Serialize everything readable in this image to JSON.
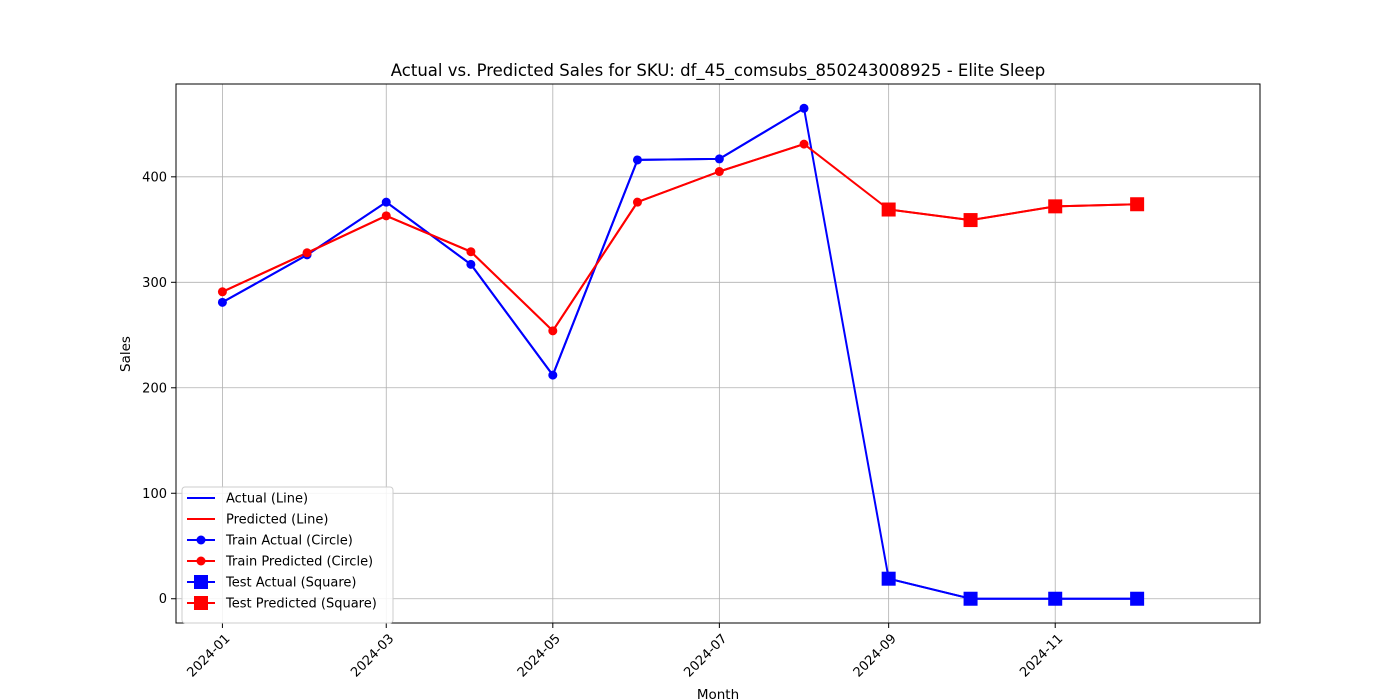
{
  "chart_data": {
    "type": "line",
    "title": "Actual vs. Predicted Sales for SKU: df_45_comsubs_850243008925 - Elite Sleep",
    "xlabel": "Month",
    "ylabel": "Sales",
    "x_ticks": [
      "2024-01",
      "2024-03",
      "2024-05",
      "2024-07",
      "2024-09",
      "2024-11"
    ],
    "y_ticks": [
      0,
      100,
      200,
      300,
      400
    ],
    "xlim": [
      "2023-12-15",
      "2025-01-15"
    ],
    "ylim": [
      -23,
      488
    ],
    "grid": true,
    "legend_position": "lower-left",
    "colors": {
      "actual": "#0000ff",
      "predicted": "#ff0000"
    },
    "series": [
      {
        "name": "Actual (Line)",
        "kind": "line",
        "color": "#0000ff",
        "x": [
          "2024-01",
          "2024-02",
          "2024-03",
          "2024-04",
          "2024-05",
          "2024-06",
          "2024-07",
          "2024-08",
          "2024-09",
          "2024-10",
          "2024-11",
          "2024-12"
        ],
        "values": [
          281,
          326,
          376,
          317,
          212,
          416,
          417,
          465,
          19,
          0,
          0,
          0
        ]
      },
      {
        "name": "Predicted (Line)",
        "kind": "line",
        "color": "#ff0000",
        "x": [
          "2024-01",
          "2024-02",
          "2024-03",
          "2024-04",
          "2024-05",
          "2024-06",
          "2024-07",
          "2024-08",
          "2024-09",
          "2024-10",
          "2024-11",
          "2024-12"
        ],
        "values": [
          291,
          328,
          363,
          329,
          254,
          376,
          405,
          431,
          369,
          359,
          372,
          374
        ]
      },
      {
        "name": "Train Actual (Circle)",
        "kind": "circle",
        "color": "#0000ff",
        "x": [
          "2024-01",
          "2024-02",
          "2024-03",
          "2024-04",
          "2024-05",
          "2024-06",
          "2024-07",
          "2024-08"
        ],
        "values": [
          281,
          326,
          376,
          317,
          212,
          416,
          417,
          465
        ]
      },
      {
        "name": "Train Predicted (Circle)",
        "kind": "circle",
        "color": "#ff0000",
        "x": [
          "2024-01",
          "2024-02",
          "2024-03",
          "2024-04",
          "2024-05",
          "2024-06",
          "2024-07",
          "2024-08"
        ],
        "values": [
          291,
          328,
          363,
          329,
          254,
          376,
          405,
          431
        ]
      },
      {
        "name": "Test Actual (Square)",
        "kind": "square",
        "color": "#0000ff",
        "x": [
          "2024-09",
          "2024-10",
          "2024-11",
          "2024-12"
        ],
        "values": [
          19,
          0,
          0,
          0
        ]
      },
      {
        "name": "Test Predicted (Square)",
        "kind": "square",
        "color": "#ff0000",
        "x": [
          "2024-09",
          "2024-10",
          "2024-11",
          "2024-12"
        ],
        "values": [
          369,
          359,
          372,
          374
        ]
      }
    ]
  }
}
